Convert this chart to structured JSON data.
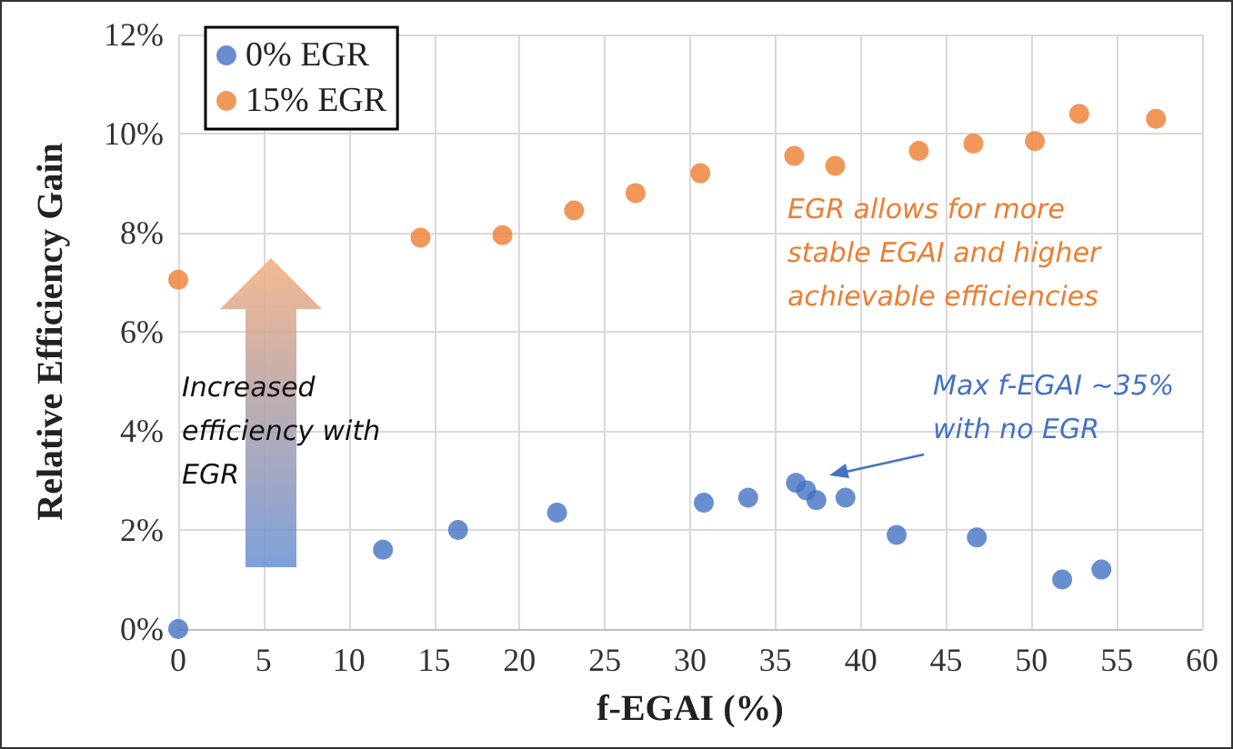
{
  "chart_data": {
    "type": "scatter",
    "xlabel": "f-EGAI (%)",
    "ylabel": "Relative Efficiency Gain",
    "xlim": [
      0,
      60
    ],
    "xticks": [
      0,
      5,
      10,
      15,
      20,
      25,
      30,
      35,
      40,
      45,
      50,
      55,
      60
    ],
    "ylim": [
      0,
      12
    ],
    "yticks": [
      {
        "value": 0,
        "label": "0%"
      },
      {
        "value": 2,
        "label": "2%"
      },
      {
        "value": 4,
        "label": "4%"
      },
      {
        "value": 6,
        "label": "6%"
      },
      {
        "value": 8,
        "label": "8%"
      },
      {
        "value": 10,
        "label": "10%"
      },
      {
        "value": 12,
        "label": "12%"
      }
    ],
    "grid": true,
    "legend": "top left",
    "marker": "circle",
    "series": [
      {
        "name": "0% EGR",
        "color": "#4472c4",
        "x": [
          0,
          12.0,
          16.4,
          22.2,
          30.8,
          33.4,
          36.2,
          36.8,
          37.4,
          39.1,
          42.1,
          46.8,
          51.8,
          54.1
        ],
        "values": [
          0,
          1.6,
          2.0,
          2.35,
          2.55,
          2.65,
          2.95,
          2.8,
          2.6,
          2.65,
          1.9,
          1.85,
          1.0,
          1.2
        ]
      },
      {
        "name": "15% EGR",
        "color": "#ed7d31",
        "x": [
          0,
          14.2,
          19.0,
          23.2,
          26.8,
          30.6,
          36.1,
          38.5,
          43.4,
          46.6,
          50.2,
          52.8,
          57.3
        ],
        "values": [
          7.05,
          7.9,
          7.95,
          8.45,
          8.8,
          9.2,
          9.55,
          9.35,
          9.65,
          9.8,
          9.85,
          10.4,
          10.3
        ]
      }
    ],
    "annotations": [
      "EGR allows for more\nstable EGAI and higher\nachievable efficiencies",
      "Increased\nefficiency with\nEGR",
      "Max f-EGAI ~35%\nwith no EGR"
    ]
  }
}
